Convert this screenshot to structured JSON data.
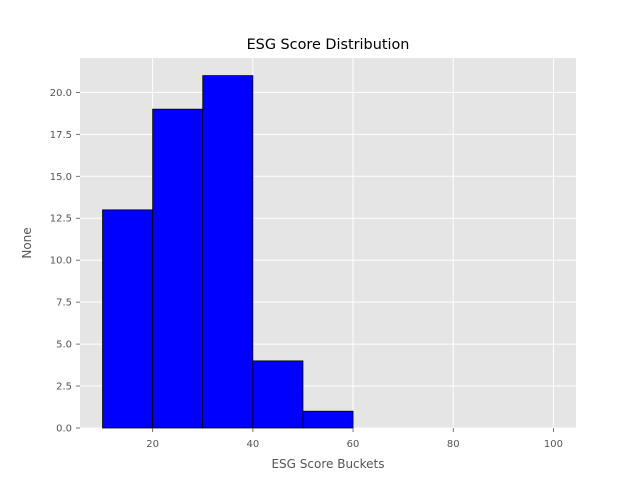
{
  "chart_data": {
    "type": "bar",
    "subtype": "histogram",
    "title": "ESG Score Distribution",
    "xlabel": "ESG Score Buckets",
    "ylabel": "None",
    "bins": [
      {
        "start": 10,
        "end": 20,
        "value": 13
      },
      {
        "start": 20,
        "end": 30,
        "value": 19
      },
      {
        "start": 30,
        "end": 40,
        "value": 21
      },
      {
        "start": 40,
        "end": 50,
        "value": 4
      },
      {
        "start": 50,
        "end": 60,
        "value": 1
      },
      {
        "start": 60,
        "end": 70,
        "value": 0
      },
      {
        "start": 70,
        "end": 80,
        "value": 0
      },
      {
        "start": 80,
        "end": 90,
        "value": 0
      },
      {
        "start": 90,
        "end": 100,
        "value": 0
      }
    ],
    "xlim": [
      5.5,
      104.5
    ],
    "ylim": [
      0,
      22.05
    ],
    "xticks": [
      20,
      40,
      60,
      80,
      100
    ],
    "xtick_labels": [
      "20",
      "40",
      "60",
      "80",
      "100"
    ],
    "yticks": [
      0,
      2.5,
      5,
      7.5,
      10,
      12.5,
      15,
      17.5,
      20
    ],
    "ytick_labels": [
      "0.0",
      "2.5",
      "5.0",
      "7.5",
      "10.0",
      "12.5",
      "15.0",
      "17.5",
      "20.0"
    ],
    "grid": true,
    "colors": {
      "bar_fill": "#0000ff",
      "bar_edge": "#000000",
      "plot_background": "#e5e5e5",
      "grid": "#ffffff"
    }
  }
}
